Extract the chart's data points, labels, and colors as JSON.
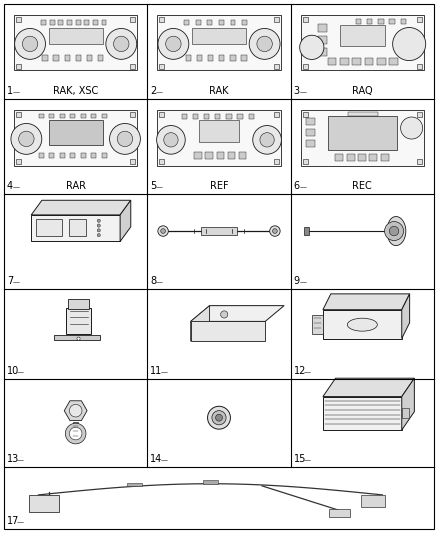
{
  "bg_color": "#ffffff",
  "grid_color": "#000000",
  "text_color": "#000000",
  "cells": [
    {
      "row": 0,
      "col": 0,
      "label": "1",
      "sublabel": "RAK, XSC",
      "type": "radio1"
    },
    {
      "row": 0,
      "col": 1,
      "label": "2",
      "sublabel": "RAK",
      "type": "radio2"
    },
    {
      "row": 0,
      "col": 2,
      "label": "3",
      "sublabel": "RAQ",
      "type": "radio3"
    },
    {
      "row": 1,
      "col": 0,
      "label": "4",
      "sublabel": "RAR",
      "type": "radio4"
    },
    {
      "row": 1,
      "col": 1,
      "label": "5",
      "sublabel": "REF",
      "type": "radio5"
    },
    {
      "row": 1,
      "col": 2,
      "label": "6",
      "sublabel": "REC",
      "type": "radio6"
    },
    {
      "row": 2,
      "col": 0,
      "label": "7",
      "sublabel": "",
      "type": "amplifier"
    },
    {
      "row": 2,
      "col": 1,
      "label": "8",
      "sublabel": "",
      "type": "cable"
    },
    {
      "row": 2,
      "col": 2,
      "label": "9",
      "sublabel": "",
      "type": "antenna"
    },
    {
      "row": 3,
      "col": 0,
      "label": "10",
      "sublabel": "",
      "type": "bracket"
    },
    {
      "row": 3,
      "col": 1,
      "label": "11",
      "sublabel": "",
      "type": "tray"
    },
    {
      "row": 3,
      "col": 2,
      "label": "12",
      "sublabel": "",
      "type": "amp2"
    },
    {
      "row": 4,
      "col": 0,
      "label": "13",
      "sublabel": "",
      "type": "knob"
    },
    {
      "row": 4,
      "col": 1,
      "label": "14",
      "sublabel": "",
      "type": "plug"
    },
    {
      "row": 4,
      "col": 2,
      "label": "15",
      "sublabel": "",
      "type": "module"
    },
    {
      "row": 5,
      "col": 0,
      "label": "17",
      "sublabel": "",
      "type": "harness",
      "colspan": 3
    }
  ],
  "label_fontsize": 7,
  "sublabel_fontsize": 7
}
